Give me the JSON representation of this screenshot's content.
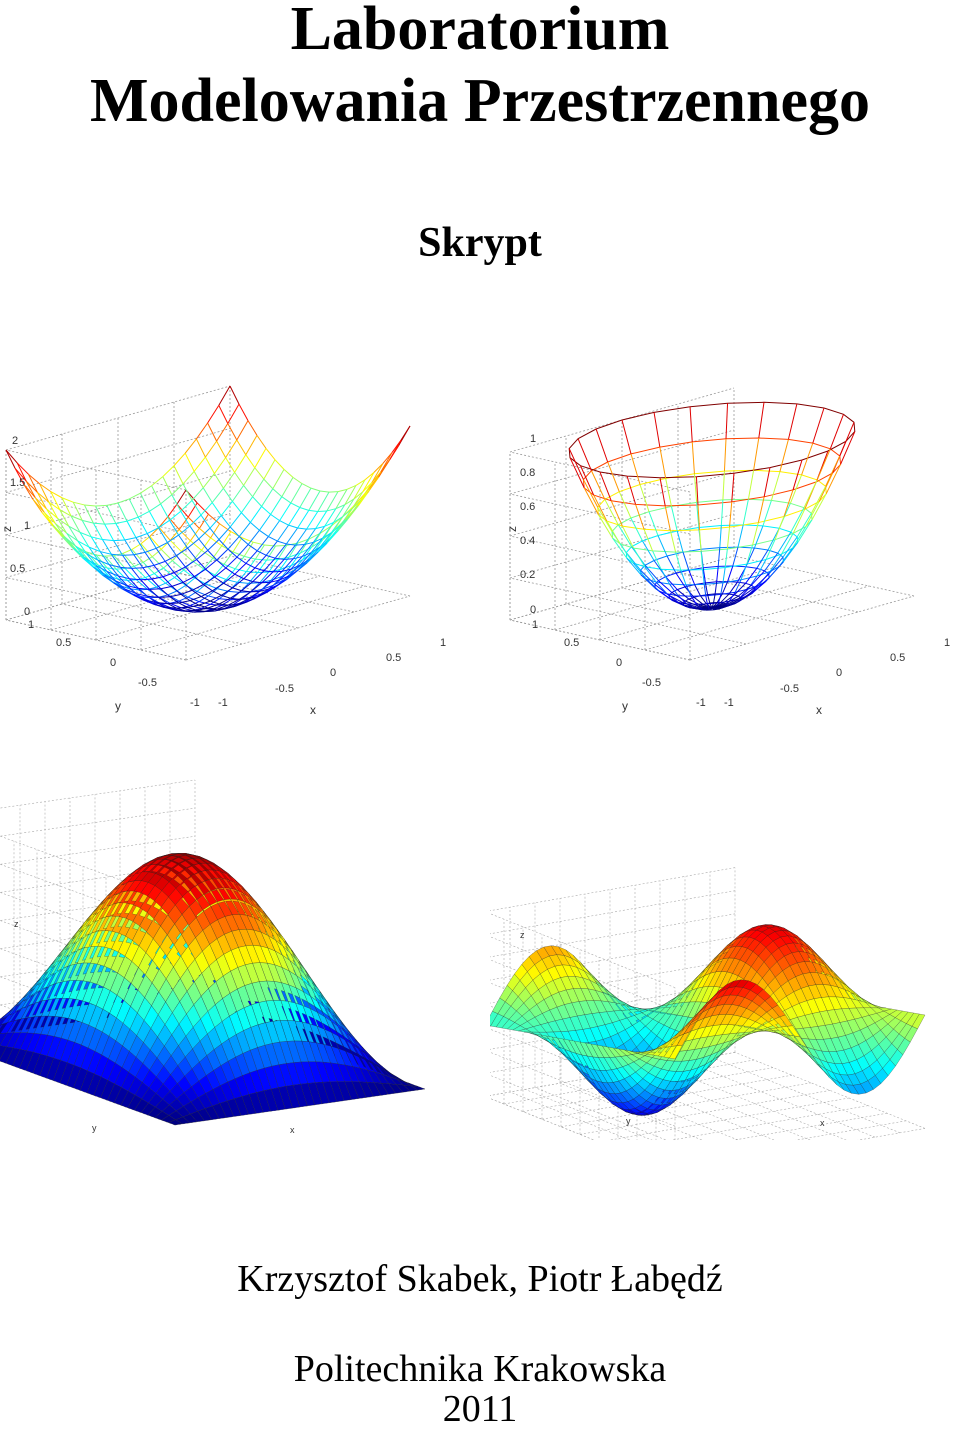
{
  "title": {
    "line1": "Laboratorium",
    "line2": "Modelowania Przestrzennego"
  },
  "subtitle": "Skrypt",
  "authors": "Krzysztof Skabek, Piotr Łabędź",
  "institution": "Politechnika Krakowska",
  "year": "2011",
  "figures": [
    {
      "type": "surface-mesh",
      "zticks": [
        "0",
        "0.5",
        "1",
        "1.5",
        "2"
      ],
      "yticks": [
        "1",
        "0.5",
        "0",
        "-0.5",
        "-1"
      ],
      "xticks": [
        "-1",
        "-0.5",
        "0",
        "0.5",
        "1"
      ],
      "zlabel": "z",
      "ylabel": "y",
      "xlabel": "x"
    },
    {
      "type": "surface-mesh",
      "zticks": [
        "0",
        "0.2",
        "0.4",
        "0.6",
        "0.8",
        "1"
      ],
      "yticks": [
        "1",
        "0.5",
        "0",
        "-0.5",
        "-1"
      ],
      "xticks": [
        "-1",
        "-0.5",
        "0",
        "0.5",
        "1"
      ],
      "zlabel": "z",
      "ylabel": "y",
      "xlabel": "x"
    },
    {
      "type": "surface",
      "colormap": "jet",
      "zlabel": "z",
      "ylabel": "y",
      "xlabel": "x"
    },
    {
      "type": "surface",
      "colormap": "jet",
      "zlabel": "z",
      "ylabel": "y",
      "xlabel": "x"
    }
  ]
}
